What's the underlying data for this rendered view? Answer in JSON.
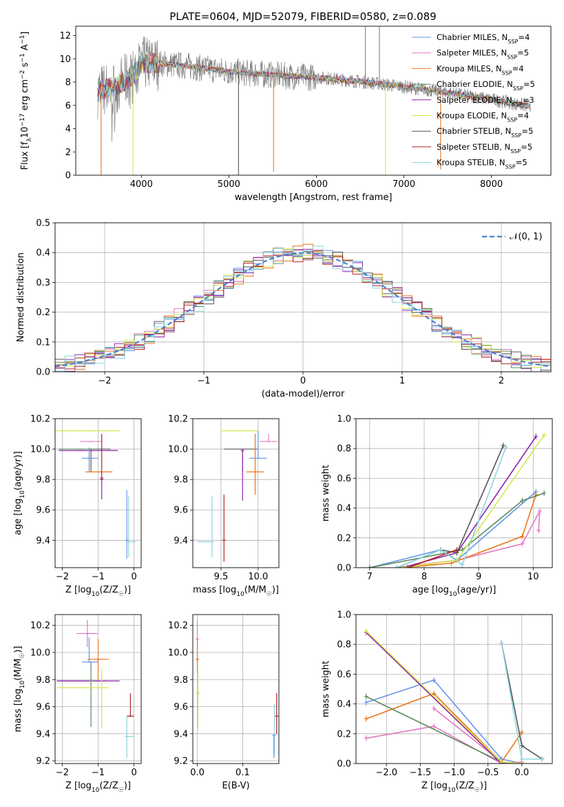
{
  "title": "PLATE=0604, MJD=52079, FIBERID=0580, z=0.089",
  "colors": {
    "chab_miles": "#6495ed",
    "salp_miles": "#e377c2",
    "krou_miles": "#e8751a",
    "chab_elodie": "#5a8a5a",
    "salp_elodie": "#8e24aa",
    "krou_elodie": "#d4e84a",
    "chab_stelib": "#555555",
    "salp_stelib": "#b22222",
    "krou_stelib": "#8dd3dd",
    "data": "#808080",
    "gauss": "#4a7fd0"
  },
  "chart_data": [
    {
      "id": "spectrum",
      "type": "line",
      "xlabel": "wavelength [Angstrom, rest frame]",
      "ylabel": "Flux [f_λ10^-17 erg cm^-2 s^-1 A^-1]",
      "xlim": [
        3250,
        8680
      ],
      "ylim": [
        0,
        12.8
      ],
      "xticks": [
        4000,
        5000,
        6000,
        7000,
        8000
      ],
      "yticks": [
        0,
        2,
        4,
        6,
        8,
        10,
        12
      ],
      "legend_position": "top-right",
      "legend": [
        {
          "label": "Chabrier MILES, N_SSP=4",
          "main": "Chabrier MILES, N",
          "sub": "SSP",
          "tail": "=4",
          "color_key": "chab_miles"
        },
        {
          "label": "Salpeter MILES, N_SSP=5",
          "main": "Salpeter MILES, N",
          "sub": "SSP",
          "tail": "=5",
          "color_key": "salp_miles"
        },
        {
          "label": "Kroupa MILES, N_SSP=4",
          "main": "Kroupa MILES, N",
          "sub": "SSP",
          "tail": "=4",
          "color_key": "krou_miles"
        },
        {
          "label": "Chabrier ELODIE, N_SSP=5",
          "main": "Chabrier ELODIE, N",
          "sub": "SSP",
          "tail": "=5",
          "color_key": "chab_elodie"
        },
        {
          "label": "Salpeter ELODIE, N_SSP=3",
          "main": "Salpeter ELODIE, N",
          "sub": "SSP",
          "tail": "=3",
          "color_key": "salp_elodie"
        },
        {
          "label": "Kroupa ELODIE, N_SSP=4",
          "main": "Kroupa ELODIE, N",
          "sub": "SSP",
          "tail": "=4",
          "color_key": "krou_elodie"
        },
        {
          "label": "Chabrier STELIB, N_SSP=5",
          "main": "Chabrier STELIB, N",
          "sub": "SSP",
          "tail": "=5",
          "color_key": "chab_stelib"
        },
        {
          "label": "Salpeter STELIB, N_SSP=5",
          "main": "Salpeter STELIB, N",
          "sub": "SSP",
          "tail": "=5",
          "color_key": "salp_stelib"
        },
        {
          "label": "Kroupa STELIB, N_SSP=5",
          "main": "Kroupa STELIB, N",
          "sub": "SSP",
          "tail": "=5",
          "color_key": "krou_stelib"
        }
      ],
      "continuum": {
        "x": [
          3500,
          3700,
          3900,
          4000,
          4200,
          4500,
          5000,
          5500,
          6000,
          6500,
          7000,
          7500,
          8000,
          8450
        ],
        "y": [
          7.2,
          7.6,
          8.5,
          9.6,
          9.6,
          9.4,
          8.9,
          8.6,
          8.4,
          8.05,
          7.6,
          7.1,
          6.5,
          5.9
        ]
      },
      "spikes": [
        {
          "x": 3540,
          "y": 0,
          "color_key": "krou_miles"
        },
        {
          "x": 3905,
          "y": 0,
          "color_key": "krou_elodie"
        },
        {
          "x": 5110,
          "y": 0,
          "color_key": "chab_stelib"
        },
        {
          "x": 5510,
          "y": 0.3,
          "color_key": "krou_miles"
        },
        {
          "x": 6790,
          "y": 0,
          "color_key": "krou_elodie"
        },
        {
          "x": 7420,
          "y": 0.5,
          "color_key": "krou_miles"
        },
        {
          "x": 6560,
          "y": 12.8,
          "color_key": "data"
        },
        {
          "x": 6720,
          "y": 12.8,
          "color_key": "data"
        }
      ]
    },
    {
      "id": "residuals",
      "type": "bar",
      "xlabel": "(data-model)/error",
      "ylabel": "Normed distribution",
      "xlim": [
        -2.5,
        2.5
      ],
      "ylim": [
        0,
        0.5
      ],
      "xticks": [
        -2,
        -1,
        0,
        1,
        2
      ],
      "yticks": [
        0.0,
        0.1,
        0.2,
        0.3,
        0.4,
        0.5
      ],
      "bins": {
        "start": -2.5,
        "width": 0.1
      },
      "legend_position": "top-right",
      "gauss_label": "𝒩(0, 1)"
    },
    {
      "id": "age_vs_Z",
      "type": "scatter",
      "xlabel": "Z [log10(Z/Z☉)]",
      "ylabel": "age [log10(age/yr)]",
      "xlim": [
        -2.2,
        0.2
      ],
      "ylim": [
        9.22,
        10.2
      ],
      "xticks": [
        -2,
        -1,
        0
      ],
      "yticks": [
        9.4,
        9.6,
        9.8,
        10.0,
        10.2
      ],
      "points": [
        {
          "c": "krou_elodie",
          "x": -1.25,
          "xerr": [
            0.95,
            0.85
          ],
          "y": 10.12,
          "yerr": [
            0.0,
            0.0
          ]
        },
        {
          "c": "salp_miles",
          "x": -1.2,
          "xerr": [
            0.3,
            0.3
          ],
          "y": 10.05,
          "yerr": [
            0.0,
            0.0
          ]
        },
        {
          "c": "chab_stelib",
          "x": -1.2,
          "xerr": [
            0.9,
            0.55
          ],
          "y": 10.0,
          "yerr": [
            0.15,
            0.0
          ]
        },
        {
          "c": "salp_elodie",
          "x": -1.5,
          "xerr": [
            0.6,
            1.05
          ],
          "y": 9.99,
          "yerr": [
            0.0,
            0.0
          ]
        },
        {
          "c": "chab_elodie",
          "x": -1.15,
          "xerr": [
            0.95,
            0.1
          ],
          "y": 10.0,
          "yerr": [
            0.0,
            0.0
          ]
        },
        {
          "c": "chab_miles",
          "x": -1.25,
          "xerr": [
            0.2,
            0.25
          ],
          "y": 9.94,
          "yerr": [
            0.09,
            0.07
          ]
        },
        {
          "c": "krou_miles",
          "x": -1.0,
          "xerr": [
            0.35,
            0.4
          ],
          "y": 9.85,
          "yerr": [
            0.0,
            0.0
          ]
        },
        {
          "c": "salp_stelib",
          "x": -0.9,
          "xerr": [
            0.0,
            0.0
          ],
          "y": 9.8,
          "yerr": [
            0.0,
            0.3
          ]
        },
        {
          "c": "salp_elodie",
          "x": -0.9,
          "xerr": [
            0.0,
            0.0
          ],
          "y": 9.81,
          "yerr": [
            0.14,
            0.0
          ]
        },
        {
          "c": "chab_miles",
          "x": -0.2,
          "xerr": [
            0.0,
            0.0
          ],
          "y": 9.4,
          "yerr": [
            0.12,
            0.33
          ]
        },
        {
          "c": "krou_stelib",
          "x": -0.15,
          "xerr": [
            0.05,
            0.2
          ],
          "y": 9.39,
          "yerr": [
            0.1,
            0.3
          ]
        }
      ]
    },
    {
      "id": "age_vs_mass",
      "type": "scatter",
      "xlabel": "mass [log10(M/M☉)]",
      "ylabel": "",
      "xlim": [
        9.12,
        10.28
      ],
      "ylim": [
        9.22,
        10.2
      ],
      "xticks": [
        9.5,
        10.0
      ],
      "yticks": [
        9.4,
        9.6,
        9.8,
        10.0,
        10.2
      ],
      "points": [
        {
          "c": "krou_elodie",
          "x": 9.75,
          "xerr": [
            0.24,
            0.25
          ],
          "y": 10.12,
          "yerr": [
            0.0,
            0.0
          ]
        },
        {
          "c": "salp_miles",
          "x": 10.14,
          "xerr": [
            0.12,
            0.12
          ],
          "y": 10.05,
          "yerr": [
            0.0,
            0.05
          ]
        },
        {
          "c": "chab_stelib",
          "x": 9.79,
          "xerr": [
            0.25,
            0.2
          ],
          "y": 10.0,
          "yerr": [
            0.15,
            0.0
          ]
        },
        {
          "c": "salp_elodie",
          "x": 9.79,
          "xerr": [
            0.0,
            0.0
          ],
          "y": 9.99,
          "yerr": [
            0.33,
            0.0
          ]
        },
        {
          "c": "chab_miles",
          "x": 10.0,
          "xerr": [
            0.12,
            0.12
          ],
          "y": 9.94,
          "yerr": [
            0.0,
            0.18
          ]
        },
        {
          "c": "krou_miles",
          "x": 9.96,
          "xerr": [
            0.12,
            0.12
          ],
          "y": 9.85,
          "yerr": [
            0.15,
            0.25
          ]
        },
        {
          "c": "krou_stelib",
          "x": 9.38,
          "xerr": [
            0.2,
            0.0
          ],
          "y": 9.39,
          "yerr": [
            0.1,
            0.3
          ]
        },
        {
          "c": "salp_stelib",
          "x": 9.54,
          "xerr": [
            0.0,
            0.0
          ],
          "y": 9.4,
          "yerr": [
            0.14,
            0.3
          ]
        }
      ]
    },
    {
      "id": "weight_vs_age",
      "type": "line",
      "xlabel": "age [log10(age/yr)]",
      "ylabel": "mass weight",
      "xlim": [
        6.75,
        10.35
      ],
      "ylim": [
        0,
        1.0
      ],
      "xticks": [
        7,
        8,
        9,
        10
      ],
      "yticks": [
        0.0,
        0.2,
        0.4,
        0.6,
        0.8,
        1.0
      ],
      "series": [
        {
          "c": "chab_miles",
          "x": [
            7.0,
            8.3,
            8.6,
            10.05
          ],
          "y": [
            0.0,
            0.12,
            0.05,
            0.51
          ]
        },
        {
          "c": "salp_miles",
          "x": [
            7.5,
            8.6,
            9.8,
            10.12,
            10.1
          ],
          "y": [
            0.0,
            0.05,
            0.16,
            0.38,
            0.25
          ]
        },
        {
          "c": "krou_miles",
          "x": [
            7.6,
            8.5,
            9.8,
            10.05
          ],
          "y": [
            0.0,
            0.03,
            0.21,
            0.49
          ]
        },
        {
          "c": "chab_elodie",
          "x": [
            7.0,
            8.7,
            9.8,
            10.2
          ],
          "y": [
            0.0,
            0.12,
            0.45,
            0.5
          ]
        },
        {
          "c": "salp_elodie",
          "x": [
            7.6,
            8.6,
            10.05
          ],
          "y": [
            0.0,
            0.1,
            0.88
          ]
        },
        {
          "c": "krou_elodie",
          "x": [
            7.6,
            8.6,
            10.2
          ],
          "y": [
            0.0,
            0.05,
            0.89
          ]
        },
        {
          "c": "chab_stelib",
          "x": [
            7.5,
            8.3,
            8.6,
            9.45
          ],
          "y": [
            0.0,
            0.12,
            0.1,
            0.82
          ]
        },
        {
          "c": "salp_stelib",
          "x": [
            7.7,
            8.6
          ],
          "y": [
            0.0,
            0.12
          ]
        },
        {
          "c": "krou_stelib",
          "x": [
            7.5,
            8.3,
            8.7,
            9.5
          ],
          "y": [
            0.0,
            0.12,
            0.02,
            0.81
          ]
        }
      ]
    },
    {
      "id": "mass_vs_Z",
      "type": "scatter",
      "xlabel": "Z [log10(Z/Z☉)]",
      "ylabel": "mass [log10(M/M☉)]",
      "xlim": [
        -2.2,
        0.2
      ],
      "ylim": [
        9.18,
        10.28
      ],
      "xticks": [
        -2,
        -1,
        0
      ],
      "yticks": [
        9.2,
        9.4,
        9.6,
        9.8,
        10.0,
        10.2
      ],
      "points": [
        {
          "c": "salp_miles",
          "x": -1.3,
          "xerr": [
            0.3,
            0.3
          ],
          "y": 10.14,
          "yerr": [
            0.1,
            0.1
          ]
        },
        {
          "c": "chab_miles",
          "x": -1.25,
          "xerr": [
            0.2,
            0.25
          ],
          "y": 9.93,
          "yerr": [
            0.0,
            0.18
          ]
        },
        {
          "c": "krou_miles",
          "x": -1.0,
          "xerr": [
            0.3,
            0.3
          ],
          "y": 9.95,
          "yerr": [
            0.15,
            0.15
          ]
        },
        {
          "c": "chab_stelib",
          "x": -1.3,
          "xerr": [
            0.85,
            0.55
          ],
          "y": 9.79,
          "yerr": [
            0.0,
            0.0
          ]
        },
        {
          "c": "salp_elodie",
          "x": -1.4,
          "xerr": [
            0.75,
            1.0
          ],
          "y": 9.79,
          "yerr": [
            0.0,
            0.0
          ]
        },
        {
          "c": "chab_elodie",
          "x": -1.2,
          "xerr": [
            0.0,
            0.0
          ],
          "y": 9.79,
          "yerr": [
            0.34,
            0.14
          ]
        },
        {
          "c": "krou_elodie",
          "x": -1.4,
          "xerr": [
            0.75,
            0.7
          ],
          "y": 9.74,
          "yerr": [
            0.0,
            0.0
          ]
        },
        {
          "c": "krou_elodie",
          "x": -0.9,
          "xerr": [
            0.0,
            0.0
          ],
          "y": 9.74,
          "yerr": [
            0.3,
            0.14
          ]
        },
        {
          "c": "salp_stelib",
          "x": -0.1,
          "xerr": [
            0.1,
            0.1
          ],
          "y": 9.53,
          "yerr": [
            0.0,
            0.17
          ]
        },
        {
          "c": "krou_stelib",
          "x": -0.2,
          "xerr": [
            0.05,
            0.2
          ],
          "y": 9.38,
          "yerr": [
            0.16,
            0.15
          ]
        }
      ]
    },
    {
      "id": "mass_vs_ebv",
      "type": "scatter",
      "xlabel": "E(B-V)",
      "ylabel": "",
      "xlim": [
        -0.01,
        0.18
      ],
      "ylim": [
        9.18,
        10.28
      ],
      "xticks": [
        0.0,
        0.1
      ],
      "yticks": [
        9.2,
        9.4,
        9.6,
        9.8,
        10.0,
        10.2
      ],
      "points": [
        {
          "c": "salp_miles",
          "x": 0.0,
          "xerr": [
            0.0,
            0.0
          ],
          "y": 10.1,
          "yerr": [
            0.1,
            0.13
          ]
        },
        {
          "c": "krou_miles",
          "x": 0.0,
          "xerr": [
            0.0,
            0.0
          ],
          "y": 9.95,
          "yerr": [
            0.1,
            0.15
          ]
        },
        {
          "c": "chab_elodie",
          "x": 0.001,
          "xerr": [
            0.0,
            0.0
          ],
          "y": 9.7,
          "yerr": [
            0.25,
            0.2
          ]
        },
        {
          "c": "krou_elodie",
          "x": 0.001,
          "xerr": [
            0.0,
            0.0
          ],
          "y": 9.7,
          "yerr": [
            0.27,
            0.2
          ]
        },
        {
          "c": "salp_stelib",
          "x": 0.175,
          "xerr": [
            0.0,
            0.0
          ],
          "y": 9.53,
          "yerr": [
            0.13,
            0.17
          ]
        },
        {
          "c": "krou_stelib",
          "x": 0.17,
          "xerr": [
            0.0,
            0.0
          ],
          "y": 9.39,
          "yerr": [
            0.15,
            0.23
          ]
        },
        {
          "c": "chab_miles",
          "x": 0.169,
          "xerr": [
            0.0,
            0.0
          ],
          "y": 9.39,
          "yerr": [
            0.17,
            0.0
          ]
        }
      ]
    },
    {
      "id": "weight_vs_Z",
      "type": "line",
      "xlabel": "Z [log10(Z/Z☉)]",
      "ylabel": "mass weight",
      "xlim": [
        -2.45,
        0.45
      ],
      "ylim": [
        0,
        1.0
      ],
      "xticks": [
        -2.0,
        -1.5,
        -1.0,
        -0.5,
        0.0
      ],
      "yticks": [
        0.0,
        0.2,
        0.4,
        0.6,
        0.8,
        1.0
      ],
      "series": [
        {
          "c": "chab_miles",
          "x": [
            -2.3,
            -1.3,
            -0.3,
            0.0
          ],
          "y": [
            0.41,
            0.56,
            0.03,
            0.0
          ]
        },
        {
          "c": "salp_miles",
          "x": [
            -2.3,
            -1.3,
            -0.3,
            0.0
          ],
          "y": [
            0.17,
            0.25,
            0.0,
            0.01
          ]
        },
        {
          "c": "salp_miles",
          "x": [
            -1.3,
            -0.3
          ],
          "y": [
            0.37,
            0.01
          ]
        },
        {
          "c": "krou_miles",
          "x": [
            -2.3,
            -1.3,
            -0.3,
            0.0
          ],
          "y": [
            0.3,
            0.47,
            0.01,
            0.21
          ]
        },
        {
          "c": "chab_elodie",
          "x": [
            -2.3,
            -0.3,
            0.0
          ],
          "y": [
            0.45,
            0.01,
            0.0
          ]
        },
        {
          "c": "salp_elodie",
          "x": [
            -2.3,
            -0.3,
            0.0
          ],
          "y": [
            0.88,
            0.0,
            0.0
          ]
        },
        {
          "c": "krou_elodie",
          "x": [
            -2.3,
            -0.3,
            0.0
          ],
          "y": [
            0.89,
            0.01,
            0.0
          ]
        },
        {
          "c": "chab_stelib",
          "x": [
            -0.3,
            0.0,
            0.3
          ],
          "y": [
            0.81,
            0.12,
            0.03
          ]
        },
        {
          "c": "krou_stelib",
          "x": [
            -0.3,
            0.0,
            0.3
          ],
          "y": [
            0.81,
            0.03,
            0.03
          ]
        }
      ]
    }
  ]
}
